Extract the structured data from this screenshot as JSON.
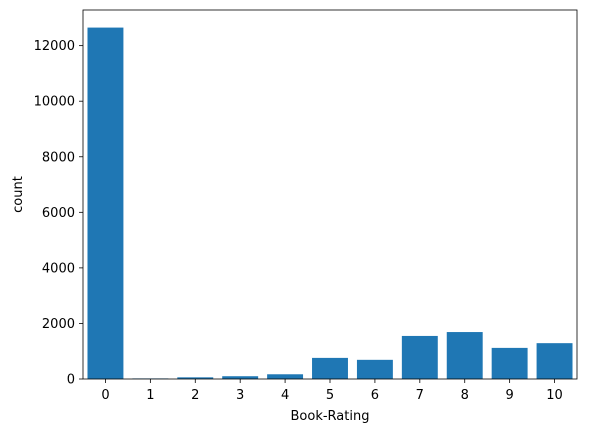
{
  "chart_data": {
    "type": "bar",
    "title": "",
    "xlabel": "Book-Rating",
    "ylabel": "count",
    "categories": [
      "0",
      "1",
      "2",
      "3",
      "4",
      "5",
      "6",
      "7",
      "8",
      "9",
      "10"
    ],
    "values": [
      12650,
      20,
      60,
      100,
      170,
      760,
      690,
      1550,
      1690,
      1120,
      1290
    ],
    "ylim": [
      0,
      13283
    ],
    "yticks": [
      0,
      2000,
      4000,
      6000,
      8000,
      10000,
      12000
    ],
    "ytick_labels": [
      "0",
      "2000",
      "4000",
      "6000",
      "8000",
      "10000",
      "12000"
    ],
    "grid": false,
    "legend": "none",
    "bar_color": "#1f77b4"
  }
}
